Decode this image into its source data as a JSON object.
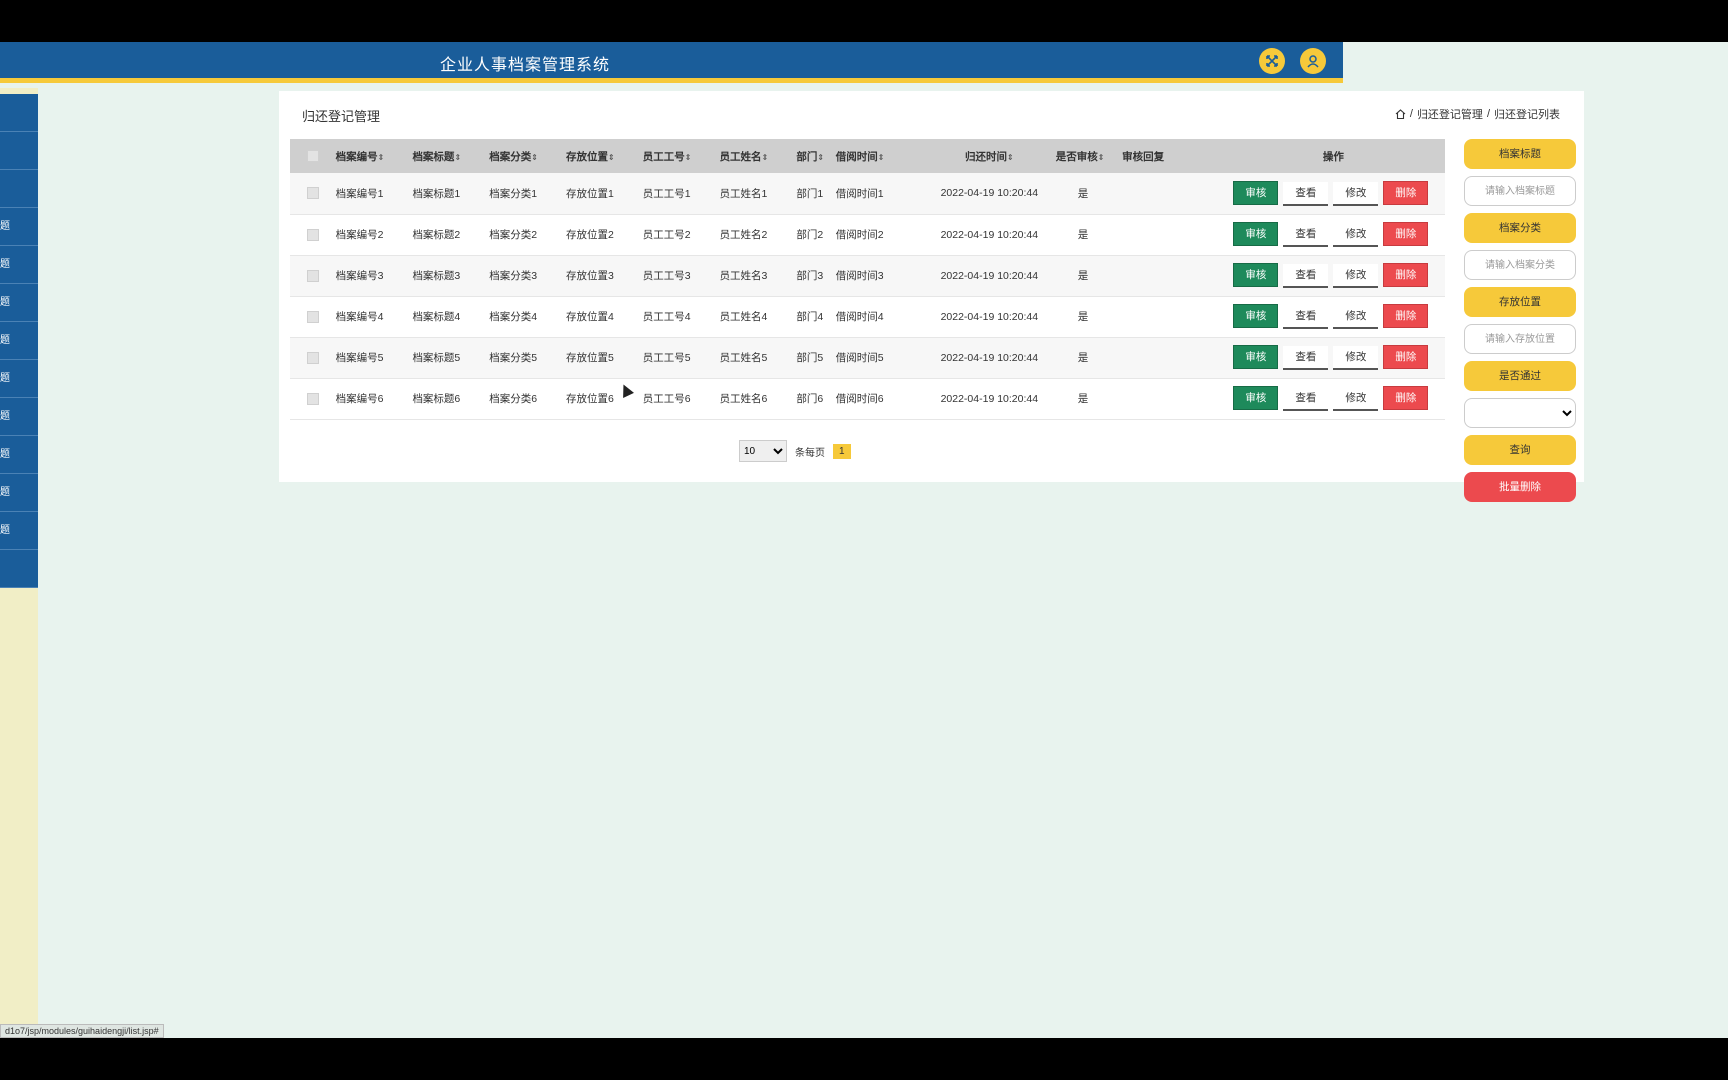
{
  "header": {
    "title": "企业人事档案管理系统",
    "fullscreen_icon": "expand-arrows-icon",
    "user_icon": "user-icon"
  },
  "sidebar": {
    "items": [
      "",
      "",
      "",
      "题",
      "题",
      "题",
      "题",
      "题",
      "题",
      "题",
      "题",
      "题",
      ""
    ]
  },
  "main": {
    "page_title": "归还登记管理",
    "breadcrumb": [
      "归还登记管理",
      "归还登记列表"
    ],
    "breadcrumb_sep": "/"
  },
  "table": {
    "headers": [
      "档案编号",
      "档案标题",
      "档案分类",
      "存放位置",
      "员工工号",
      "员工姓名",
      "部门",
      "借阅时间",
      "归还时间",
      "是否审核",
      "审核回复",
      "操作"
    ],
    "sortable": [
      true,
      true,
      true,
      true,
      true,
      true,
      true,
      true,
      true,
      true,
      false,
      false
    ],
    "sort_icon": "⇕",
    "rows": [
      [
        "档案编号1",
        "档案标题1",
        "档案分类1",
        "存放位置1",
        "员工工号1",
        "员工姓名1",
        "部门1",
        "借阅时间1",
        "2022-04-19 10:20:44",
        "是",
        ""
      ],
      [
        "档案编号2",
        "档案标题2",
        "档案分类2",
        "存放位置2",
        "员工工号2",
        "员工姓名2",
        "部门2",
        "借阅时间2",
        "2022-04-19 10:20:44",
        "是",
        ""
      ],
      [
        "档案编号3",
        "档案标题3",
        "档案分类3",
        "存放位置3",
        "员工工号3",
        "员工姓名3",
        "部门3",
        "借阅时间3",
        "2022-04-19 10:20:44",
        "是",
        ""
      ],
      [
        "档案编号4",
        "档案标题4",
        "档案分类4",
        "存放位置4",
        "员工工号4",
        "员工姓名4",
        "部门4",
        "借阅时间4",
        "2022-04-19 10:20:44",
        "是",
        ""
      ],
      [
        "档案编号5",
        "档案标题5",
        "档案分类5",
        "存放位置5",
        "员工工号5",
        "员工姓名5",
        "部门5",
        "借阅时间5",
        "2022-04-19 10:20:44",
        "是",
        ""
      ],
      [
        "档案编号6",
        "档案标题6",
        "档案分类6",
        "存放位置6",
        "员工工号6",
        "员工姓名6",
        "部门6",
        "借阅时间6",
        "2022-04-19 10:20:44",
        "是",
        ""
      ]
    ],
    "actions": {
      "audit": "审核",
      "view": "查看",
      "edit": "修改",
      "delete": "删除"
    }
  },
  "pager": {
    "page_size": "10",
    "per_page_label": "条每页",
    "current_page": "1"
  },
  "search": {
    "title_label": "档案标题",
    "title_placeholder": "请输入档案标题",
    "category_label": "档案分类",
    "category_placeholder": "请输入档案分类",
    "location_label": "存放位置",
    "location_placeholder": "请输入存放位置",
    "passed_label": "是否通过",
    "passed_value": "",
    "query_button": "查询",
    "batch_delete_button": "批量删除"
  },
  "statusbar": {
    "url": "d1o7/jsp/modules/guihaidengji/list.jsp#"
  },
  "colors": {
    "header_blue": "#1a5d9a",
    "accent_yellow": "#f6c93a",
    "audit_green": "#1e8a5b",
    "delete_red": "#ec4a4e",
    "page_bg": "#e8f3ee"
  }
}
